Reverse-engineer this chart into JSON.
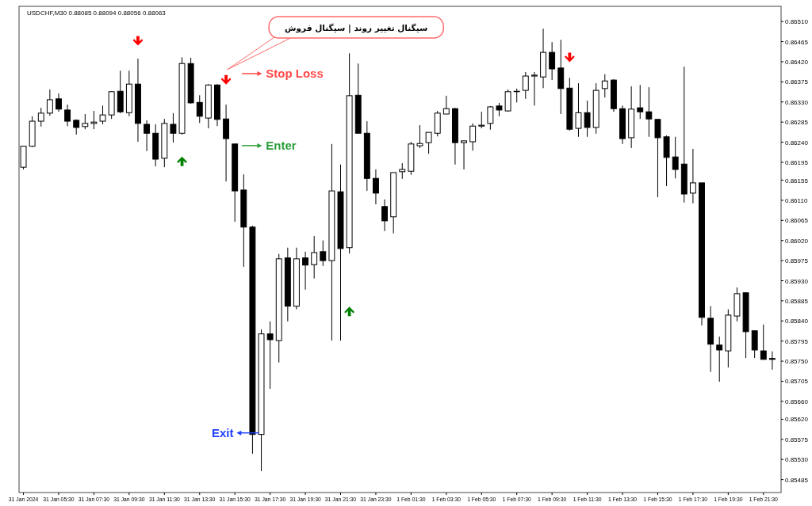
{
  "chart_data": {
    "type": "candlestick",
    "title": "USDCHF,M30  0.88085 0.88094 0.88056 0.88063",
    "categories": [
      "31 Jan 2024",
      null,
      null,
      null,
      "31 Jan 05:30",
      null,
      null,
      null,
      "31 Jan 07:30",
      null,
      null,
      null,
      "31 Jan 09:30",
      null,
      null,
      null,
      "31 Jan 11:30",
      null,
      null,
      null,
      "31 Jan 13:30",
      null,
      null,
      null,
      "31 Jan 15:30",
      null,
      null,
      null,
      "31 Jan 17:30",
      null,
      null,
      null,
      "31 Jan 19:30",
      null,
      null,
      null,
      "31 Jan 21:30",
      null,
      null,
      null,
      "31 Jan 23:30",
      null,
      null,
      null,
      "1 Feb 01:30",
      null,
      null,
      null,
      "1 Feb 03:30",
      null,
      null,
      null,
      "1 Feb 05:30",
      null,
      null,
      null,
      "1 Feb 07:30",
      null,
      null,
      null,
      "1 Feb 09:30",
      null,
      null,
      null,
      "1 Feb 11:30",
      null,
      null,
      null,
      "1 Feb 13:30",
      null,
      null,
      null,
      "1 Feb 15:30",
      null,
      null,
      null,
      "1 Feb 17:30",
      null,
      null,
      null,
      "1 Feb 19:30",
      null,
      null,
      null,
      "1 Feb 21:30",
      null
    ],
    "ohlc": [
      [
        0.86184,
        0.86231,
        0.86179,
        0.86231
      ],
      [
        0.86231,
        0.86298,
        0.86229,
        0.86287
      ],
      [
        0.86287,
        0.86317,
        0.86275,
        0.86305
      ],
      [
        0.86305,
        0.86358,
        0.86299,
        0.86335
      ],
      [
        0.86337,
        0.86349,
        0.86308,
        0.86314
      ],
      [
        0.86312,
        0.86324,
        0.86276,
        0.86287
      ],
      [
        0.86289,
        0.86291,
        0.86257,
        0.86273
      ],
      [
        0.86275,
        0.86303,
        0.86269,
        0.86282
      ],
      [
        0.86282,
        0.8631,
        0.86269,
        0.86285
      ],
      [
        0.86287,
        0.86322,
        0.8628,
        0.86301
      ],
      [
        0.86301,
        0.86354,
        0.86292,
        0.86353
      ],
      [
        0.86354,
        0.864,
        0.86305,
        0.86308
      ],
      [
        0.86306,
        0.864,
        0.86298,
        0.8637
      ],
      [
        0.8637,
        0.86427,
        0.86241,
        0.86282
      ],
      [
        0.8628,
        0.86289,
        0.8622,
        0.8626
      ],
      [
        0.8626,
        0.8628,
        0.86186,
        0.86202
      ],
      [
        0.86204,
        0.86292,
        0.86184,
        0.86282
      ],
      [
        0.8628,
        0.86305,
        0.86239,
        0.8626
      ],
      [
        0.8626,
        0.8643,
        0.86257,
        0.86416
      ],
      [
        0.86416,
        0.86429,
        0.86326,
        0.86328
      ],
      [
        0.86329,
        0.86345,
        0.86283,
        0.86298
      ],
      [
        0.86294,
        0.8637,
        0.86271,
        0.86368
      ],
      [
        0.86368,
        0.8637,
        0.86276,
        0.86291
      ],
      [
        0.86292,
        0.86324,
        0.86152,
        0.86248
      ],
      [
        0.86236,
        0.86236,
        0.86062,
        0.86131
      ],
      [
        0.86133,
        0.86168,
        0.85961,
        0.8605
      ],
      [
        0.8605,
        0.86053,
        0.85543,
        0.85586
      ],
      [
        0.85586,
        0.85821,
        0.85504,
        0.85811
      ],
      [
        0.85811,
        0.85839,
        0.85688,
        0.85798
      ],
      [
        0.85796,
        0.8599,
        0.85747,
        0.85979
      ],
      [
        0.85981,
        0.86004,
        0.85839,
        0.85873
      ],
      [
        0.85873,
        0.86004,
        0.85866,
        0.85979
      ],
      [
        0.85981,
        0.85995,
        0.8591,
        0.85965
      ],
      [
        0.85966,
        0.8603,
        0.85935,
        0.85993
      ],
      [
        0.85995,
        0.8602,
        0.85963,
        0.85975
      ],
      [
        0.85975,
        0.86236,
        0.85796,
        0.86131
      ],
      [
        0.86129,
        0.8619,
        0.85796,
        0.86002
      ],
      [
        0.86004,
        0.86439,
        0.85991,
        0.86344
      ],
      [
        0.86345,
        0.86416,
        0.8626,
        0.8626
      ],
      [
        0.8626,
        0.86287,
        0.86131,
        0.86159
      ],
      [
        0.86159,
        0.86179,
        0.86101,
        0.86126
      ],
      [
        0.86096,
        0.86112,
        0.86041,
        0.86064
      ],
      [
        0.86073,
        0.86172,
        0.86036,
        0.86172
      ],
      [
        0.86174,
        0.86193,
        0.86158,
        0.86179
      ],
      [
        0.86175,
        0.86241,
        0.86167,
        0.86236
      ],
      [
        0.86232,
        0.86278,
        0.86227,
        0.86237
      ],
      [
        0.86239,
        0.86262,
        0.86214,
        0.86262
      ],
      [
        0.8626,
        0.8631,
        0.86253,
        0.86305
      ],
      [
        0.86303,
        0.86344,
        0.86303,
        0.86315
      ],
      [
        0.86315,
        0.86317,
        0.8619,
        0.86239
      ],
      [
        0.86239,
        0.86243,
        0.86179,
        0.86243
      ],
      [
        0.86241,
        0.86282,
        0.86221,
        0.86276
      ],
      [
        0.86276,
        0.86308,
        0.86271,
        0.86278
      ],
      [
        0.86282,
        0.86321,
        0.86268,
        0.86319
      ],
      [
        0.86321,
        0.86328,
        0.86298,
        0.86312
      ],
      [
        0.8631,
        0.86358,
        0.86308,
        0.86353
      ],
      [
        0.86353,
        0.8636,
        0.86329,
        0.86354
      ],
      [
        0.86356,
        0.86397,
        0.86337,
        0.86388
      ],
      [
        0.86388,
        0.86397,
        0.86322,
        0.8639
      ],
      [
        0.86386,
        0.86494,
        0.86361,
        0.86441
      ],
      [
        0.86441,
        0.86464,
        0.86379,
        0.86404
      ],
      [
        0.86406,
        0.86469,
        0.86303,
        0.8636
      ],
      [
        0.86361,
        0.86384,
        0.86266,
        0.86269
      ],
      [
        0.86271,
        0.86372,
        0.86252,
        0.86306
      ],
      [
        0.86306,
        0.86333,
        0.86252,
        0.86273
      ],
      [
        0.86273,
        0.86372,
        0.86259,
        0.86356
      ],
      [
        0.8636,
        0.86392,
        0.8634,
        0.86377
      ],
      [
        0.86379,
        0.86381,
        0.86308,
        0.86315
      ],
      [
        0.86315,
        0.86322,
        0.86236,
        0.86248
      ],
      [
        0.8625,
        0.86365,
        0.86227,
        0.86314
      ],
      [
        0.86317,
        0.86368,
        0.86292,
        0.86308
      ],
      [
        0.86308,
        0.86363,
        0.86252,
        0.86292
      ],
      [
        0.86291,
        0.86292,
        0.86117,
        0.8625
      ],
      [
        0.86252,
        0.86255,
        0.86142,
        0.86206
      ],
      [
        0.86207,
        0.86252,
        0.86159,
        0.86179
      ],
      [
        0.86191,
        0.86409,
        0.86105,
        0.86124
      ],
      [
        0.86126,
        0.86225,
        0.86103,
        0.86149
      ],
      [
        0.86149,
        0.86149,
        0.8583,
        0.85848
      ],
      [
        0.85846,
        0.85873,
        0.85726,
        0.85788
      ],
      [
        0.85786,
        0.85805,
        0.85704,
        0.85775
      ],
      [
        0.85773,
        0.85866,
        0.85736,
        0.85853
      ],
      [
        0.85851,
        0.85915,
        0.85839,
        0.85901
      ],
      [
        0.85903,
        0.85904,
        0.85757,
        0.85816
      ],
      [
        0.85818,
        0.85818,
        0.85757,
        0.85775
      ],
      [
        0.85773,
        0.85832,
        0.85754,
        0.85754
      ],
      [
        0.85756,
        0.85772,
        0.85731,
        0.85754
      ]
    ],
    "series": [
      {
        "type": "scatter",
        "color": "#ff0000",
        "values": [
          null,
          null,
          null,
          null,
          null,
          null,
          null,
          null,
          null,
          null,
          null,
          null,
          null,
          0.86466,
          null,
          null,
          null,
          null,
          null,
          null,
          null,
          null,
          null,
          0.86379,
          null,
          null,
          null,
          null,
          null,
          null,
          null,
          null,
          null,
          null,
          null,
          null,
          null,
          null,
          null,
          null,
          null,
          null,
          null,
          null,
          null,
          null,
          null,
          null,
          null,
          null,
          null,
          null,
          null,
          null,
          null,
          null,
          null,
          null,
          null,
          null,
          null,
          null,
          0.86429,
          null,
          null,
          null,
          null,
          null,
          null,
          null,
          null,
          null,
          null,
          null,
          null,
          null,
          null,
          null,
          null,
          null,
          null,
          null,
          null,
          null,
          null,
          null
        ]
      },
      {
        "type": "scatter",
        "color": "#008000",
        "values": [
          null,
          null,
          null,
          null,
          null,
          null,
          null,
          null,
          null,
          null,
          null,
          null,
          null,
          null,
          null,
          null,
          null,
          null,
          0.86198,
          null,
          null,
          null,
          null,
          null,
          null,
          null,
          null,
          null,
          null,
          null,
          null,
          null,
          null,
          null,
          null,
          null,
          null,
          0.85862,
          null,
          null,
          null,
          null,
          null,
          null,
          null,
          null,
          null,
          null,
          null,
          null,
          null,
          null,
          null,
          null,
          null,
          null,
          null,
          null,
          null,
          null,
          null,
          null,
          null,
          null,
          null,
          null,
          null,
          null,
          null,
          null,
          null,
          null,
          null,
          null,
          null,
          null,
          null,
          null,
          null,
          null,
          null,
          null,
          null,
          null,
          null,
          null
        ]
      }
    ],
    "ylim": [
      0.85456,
      0.86544
    ],
    "yticks": [
      0.85485,
      {
        "value": 0.8553,
        "label": "0.85530"
      },
      0.85575,
      {
        "value": 0.8562,
        "label": "0.85620"
      },
      {
        "value": 0.8566,
        "label": "0.85660"
      },
      0.85705,
      {
        "value": 0.8575,
        "label": "0.85750"
      },
      0.85795,
      {
        "value": 0.8584,
        "label": "0.85840"
      },
      0.85885,
      {
        "value": 0.8593,
        "label": "0.85930"
      },
      0.85975,
      {
        "value": 0.8602,
        "label": "0.86020"
      },
      0.86065,
      {
        "value": 0.8611,
        "label": "0.86110"
      },
      0.86155,
      0.86195,
      {
        "value": 0.8624,
        "label": "0.86240"
      },
      0.86285,
      {
        "value": 0.8633,
        "label": "0.86330"
      },
      0.86375,
      {
        "value": 0.8642,
        "label": "0.86420"
      },
      0.86465,
      {
        "value": 0.8651,
        "label": "0.86510"
      }
    ],
    "annotations": [
      "Stop Loss",
      "Enter",
      "Exit",
      "سیگنال تغییر روند | سیگنال فروش"
    ]
  }
}
